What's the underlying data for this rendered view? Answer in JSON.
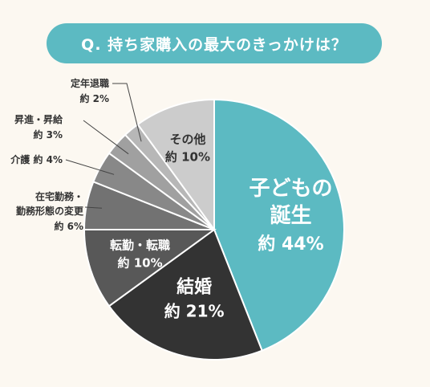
{
  "title": "Q. 持ち家購入の最大のきっかけは？",
  "chart_data": {
    "type": "pie",
    "start": "12 o'clock",
    "direction": "clockwise",
    "slices": [
      {
        "label": "子どもの誕生",
        "label_lines": [
          "子どもの",
          "誕生"
        ],
        "value_text": "約 44%",
        "value": 44,
        "color": "#5cbac2",
        "label_color": "#ffffff",
        "label_placement": "inside"
      },
      {
        "label": "結婚",
        "label_lines": [
          "結婚"
        ],
        "value_text": "約 21%",
        "value": 21,
        "color": "#333333",
        "label_color": "#ffffff",
        "label_placement": "inside"
      },
      {
        "label": "転勤・転職",
        "label_lines": [
          "転勤・転職"
        ],
        "value_text": "約 10%",
        "value": 10,
        "color": "#585858",
        "label_color": "#ffffff",
        "label_placement": "inside"
      },
      {
        "label": "在宅勤務・勤務形態の変更",
        "label_lines": [
          "在宅勤務・",
          "勤務形態の変更"
        ],
        "value_text": "約 6%",
        "value": 6,
        "color": "#727272",
        "label_color": "#333333",
        "label_placement": "outside"
      },
      {
        "label": "介護",
        "label_lines": [
          "介護"
        ],
        "value_text": "約 4%",
        "value": 4,
        "color": "#888888",
        "label_color": "#333333",
        "label_placement": "outside"
      },
      {
        "label": "昇進・昇給",
        "label_lines": [
          "昇進・昇給"
        ],
        "value_text": "約 3%",
        "value": 3,
        "color": "#a0a0a0",
        "label_color": "#333333",
        "label_placement": "outside"
      },
      {
        "label": "定年退職",
        "label_lines": [
          "定年退職"
        ],
        "value_text": "約 2%",
        "value": 2,
        "color": "#b7b7b7",
        "label_color": "#333333",
        "label_placement": "outside"
      },
      {
        "label": "その他",
        "label_lines": [
          "その他"
        ],
        "value_text": "約 10%",
        "value": 10,
        "color": "#cccccc",
        "label_color": "#333333",
        "label_placement": "inside"
      }
    ]
  }
}
